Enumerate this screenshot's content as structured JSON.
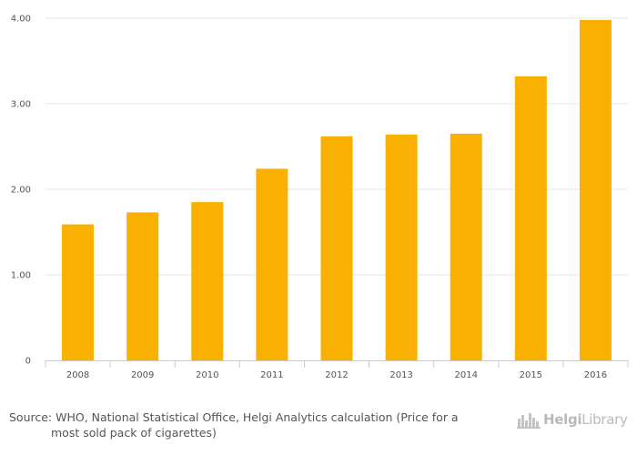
{
  "chart_data": {
    "type": "bar",
    "categories": [
      "2008",
      "2009",
      "2010",
      "2011",
      "2012",
      "2013",
      "2014",
      "2015",
      "2016"
    ],
    "values": [
      1.59,
      1.73,
      1.85,
      2.24,
      2.62,
      2.64,
      2.65,
      3.32,
      3.98
    ],
    "title": "",
    "xlabel": "",
    "ylabel": "",
    "ylim": [
      0,
      4
    ],
    "yticks": [
      "0",
      "1.00",
      "2.00",
      "3.00",
      "4.00"
    ],
    "grid": true,
    "bar_color": "#f9b000"
  },
  "footer": {
    "source_line1": "Source: WHO, National Statistical Office, Helgi Analytics calculation (Price for a",
    "source_line2": "most sold pack of cigarettes)"
  },
  "logo": {
    "text_bold": "Helgi",
    "text_regular": "Library",
    "icon": "city-skyline-icon"
  }
}
